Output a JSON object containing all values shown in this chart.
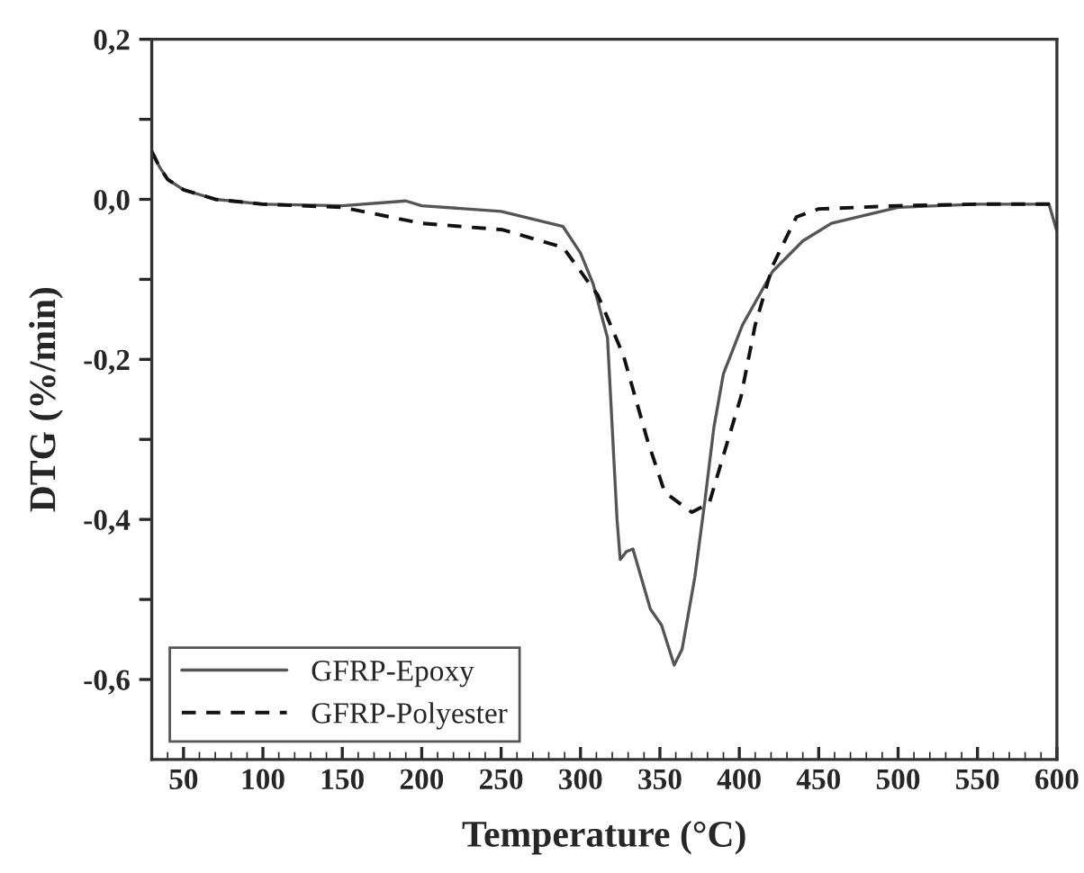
{
  "chart_data": {
    "type": "line",
    "xlabel": "Temperature (°C)",
    "ylabel": "DTG (%/min)",
    "xlim": [
      30,
      600
    ],
    "ylim": [
      -0.7,
      0.2
    ],
    "xticks": [
      50,
      100,
      150,
      200,
      250,
      300,
      350,
      400,
      450,
      500,
      550,
      600
    ],
    "yticks": [
      {
        "value": 0.2,
        "label": "0,2"
      },
      {
        "value": 0.1,
        "label": null
      },
      {
        "value": 0.0,
        "label": "0,0"
      },
      {
        "value": -0.1,
        "label": null
      },
      {
        "value": -0.2,
        "label": "-0,2"
      },
      {
        "value": -0.3,
        "label": null
      },
      {
        "value": -0.4,
        "label": "-0,4"
      },
      {
        "value": -0.5,
        "label": null
      },
      {
        "value": -0.6,
        "label": "-0,6"
      }
    ],
    "grid": false,
    "legend": "bottom left",
    "marker": "none",
    "series": [
      {
        "name": "GFRP-Epoxy",
        "color": "#555555",
        "line_style": "solid",
        "x": [
          30,
          35,
          40,
          50,
          70,
          100,
          150,
          190,
          200,
          250,
          289,
          300,
          308,
          317,
          323,
          325,
          329,
          333,
          344,
          351,
          359,
          364,
          372,
          378,
          384,
          390,
          402,
          421,
          440,
          458,
          500,
          550,
          595,
          600
        ],
        "values": [
          0.06,
          0.04,
          0.025,
          0.012,
          0.0,
          -0.006,
          -0.008,
          -0.002,
          -0.008,
          -0.015,
          -0.034,
          -0.067,
          -0.106,
          -0.173,
          -0.4,
          -0.45,
          -0.44,
          -0.437,
          -0.512,
          -0.532,
          -0.582,
          -0.562,
          -0.472,
          -0.382,
          -0.285,
          -0.218,
          -0.157,
          -0.09,
          -0.052,
          -0.03,
          -0.01,
          -0.006,
          -0.006,
          -0.04
        ]
      },
      {
        "name": "GFRP-Polyester",
        "color": "#111111",
        "line_style": "dashed",
        "x": [
          30,
          35,
          40,
          50,
          70,
          100,
          150,
          180,
          200,
          251,
          289,
          311,
          327,
          342,
          353,
          370,
          381,
          390,
          401,
          410,
          421,
          432,
          436,
          450,
          500,
          550,
          600
        ],
        "values": [
          0.06,
          0.04,
          0.025,
          0.012,
          0.0,
          -0.006,
          -0.01,
          -0.022,
          -0.03,
          -0.038,
          -0.06,
          -0.12,
          -0.195,
          -0.3,
          -0.366,
          -0.391,
          -0.38,
          -0.32,
          -0.247,
          -0.157,
          -0.083,
          -0.038,
          -0.022,
          -0.012,
          -0.008,
          -0.006,
          -0.006
        ]
      }
    ]
  }
}
